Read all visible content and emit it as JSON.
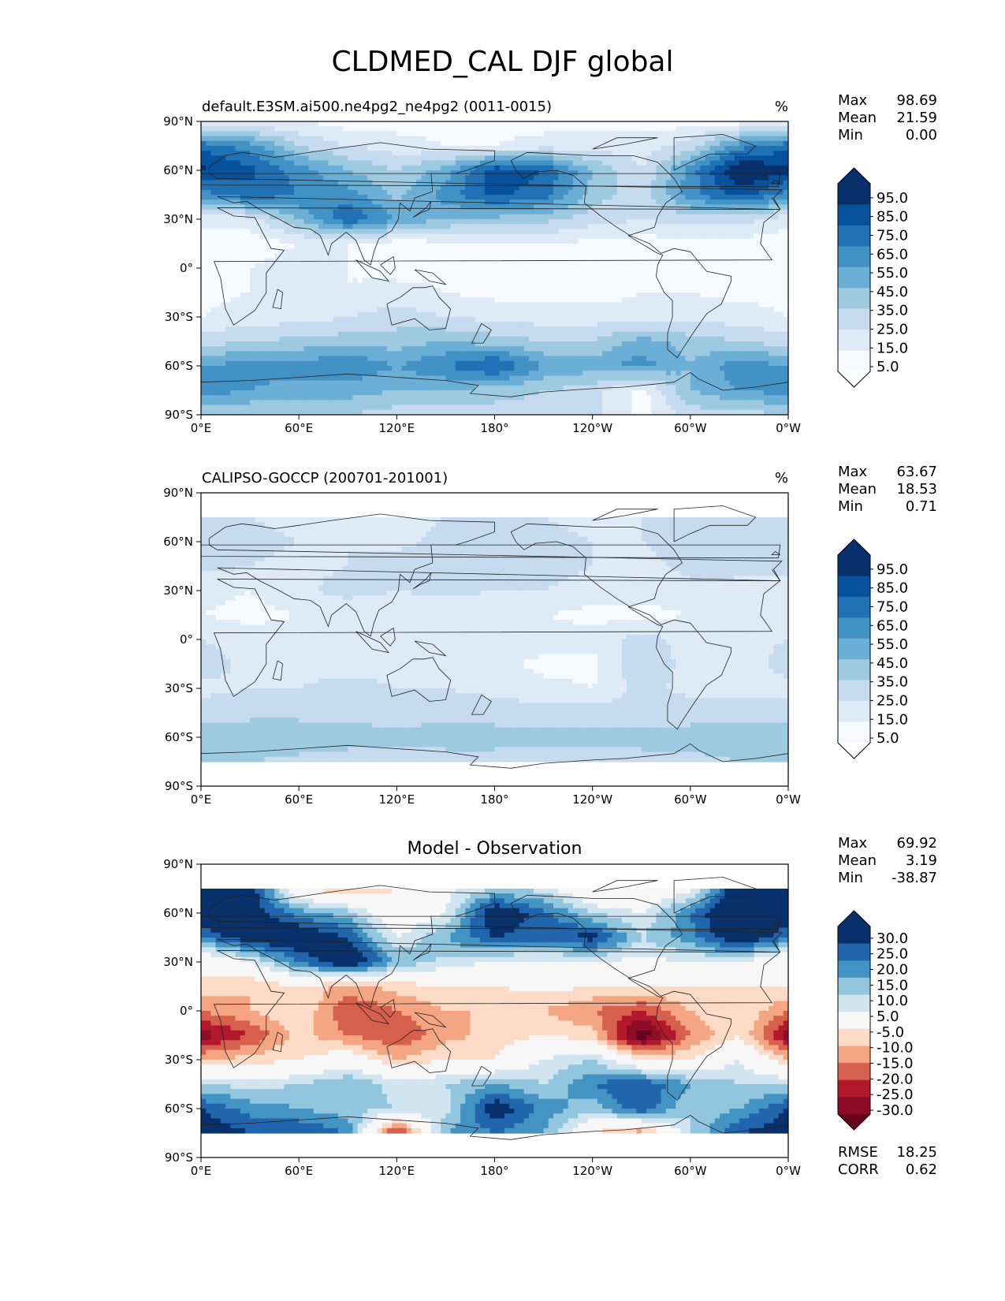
{
  "title": "CLDMED_CAL DJF global",
  "chart_data": [
    {
      "type": "heatmap",
      "title": "default.E3SM.ai500.ne4pg2_ne4pg2 (0011-0015)",
      "units": "%",
      "xticks": [
        "0°E",
        "60°E",
        "120°E",
        "180°",
        "120°W",
        "60°W",
        "0°W"
      ],
      "yticks": [
        "90°N",
        "60°N",
        "30°N",
        "0°",
        "30°S",
        "60°S",
        "90°S"
      ],
      "xlim": [
        0,
        360
      ],
      "ylim": [
        -90,
        90
      ],
      "stats": [
        {
          "label": "Max",
          "value": "98.69"
        },
        {
          "label": "Mean",
          "value": "21.59"
        },
        {
          "label": "Min",
          "value": "0.00"
        }
      ],
      "colorbar": {
        "labels": [
          "95.0",
          "85.0",
          "75.0",
          "65.0",
          "55.0",
          "45.0",
          "35.0",
          "25.0",
          "15.0",
          "5.0"
        ],
        "colors": [
          "#08306b",
          "#08519c",
          "#2171b5",
          "#4292c6",
          "#6baed6",
          "#9ecae1",
          "#c6dbef",
          "#deebf7",
          "#f7fbff"
        ],
        "extend": "both",
        "over_color": "#08306b",
        "under_color": "#ffffff"
      },
      "fields": [
        {
          "lat": 90,
          "values": [
            0.15,
            0.15,
            0.15,
            0.1,
            0.1,
            0.1,
            0.1,
            0.1,
            0.1,
            0.1,
            0.1,
            0.1
          ]
        },
        {
          "lat": 75,
          "values": [
            0.72,
            0.6,
            0.35,
            0.25,
            0.2,
            0.15,
            0.15,
            0.2,
            0.2,
            0.2,
            0.3,
            0.6
          ]
        },
        {
          "lat": 60,
          "values": [
            0.88,
            0.78,
            0.6,
            0.45,
            0.35,
            0.5,
            0.82,
            0.75,
            0.45,
            0.25,
            0.6,
            0.98
          ]
        },
        {
          "lat": 45,
          "values": [
            0.6,
            0.72,
            0.65,
            0.6,
            0.42,
            0.6,
            0.78,
            0.7,
            0.4,
            0.3,
            0.6,
            0.8
          ]
        },
        {
          "lat": 30,
          "values": [
            0.18,
            0.2,
            0.45,
            0.75,
            0.55,
            0.45,
            0.42,
            0.38,
            0.3,
            0.25,
            0.3,
            0.3
          ]
        },
        {
          "lat": 15,
          "values": [
            0.1,
            0.1,
            0.15,
            0.15,
            0.1,
            0.12,
            0.15,
            0.15,
            0.12,
            0.1,
            0.1,
            0.1
          ]
        },
        {
          "lat": 0,
          "values": [
            0.1,
            0.15,
            0.2,
            0.15,
            0.1,
            0.12,
            0.1,
            0.1,
            0.1,
            0.1,
            0.1,
            0.1
          ]
        },
        {
          "lat": -15,
          "values": [
            0.12,
            0.15,
            0.2,
            0.15,
            0.2,
            0.15,
            0.12,
            0.1,
            0.1,
            0.15,
            0.15,
            0.12
          ]
        },
        {
          "lat": -30,
          "values": [
            0.15,
            0.2,
            0.2,
            0.25,
            0.3,
            0.25,
            0.22,
            0.2,
            0.2,
            0.2,
            0.2,
            0.2
          ]
        },
        {
          "lat": -45,
          "values": [
            0.3,
            0.35,
            0.38,
            0.4,
            0.4,
            0.45,
            0.4,
            0.35,
            0.35,
            0.5,
            0.4,
            0.35
          ]
        },
        {
          "lat": -60,
          "values": [
            0.55,
            0.6,
            0.6,
            0.65,
            0.55,
            0.65,
            0.78,
            0.55,
            0.5,
            0.6,
            0.45,
            0.62
          ]
        },
        {
          "lat": -75,
          "values": [
            0.6,
            0.55,
            0.5,
            0.5,
            0.45,
            0.45,
            0.4,
            0.35,
            0.3,
            0.1,
            0.45,
            0.55
          ]
        },
        {
          "lat": -90,
          "values": [
            0.35,
            0.35,
            0.35,
            0.35,
            0.3,
            0.3,
            0.3,
            0.3,
            0.3,
            0.1,
            0.3,
            0.3
          ]
        }
      ]
    },
    {
      "type": "heatmap",
      "title": "CALIPSO-GOCCP (200701-201001)",
      "units": "%",
      "xticks": [
        "0°E",
        "60°E",
        "120°E",
        "180°",
        "120°W",
        "60°W",
        "0°W"
      ],
      "yticks": [
        "90°N",
        "60°N",
        "30°N",
        "0°",
        "30°S",
        "60°S",
        "90°S"
      ],
      "xlim": [
        0,
        360
      ],
      "ylim": [
        -90,
        90
      ],
      "stats": [
        {
          "label": "Max",
          "value": "63.67"
        },
        {
          "label": "Mean",
          "value": "18.53"
        },
        {
          "label": "Min",
          "value": "0.71"
        }
      ],
      "colorbar": {
        "labels": [
          "95.0",
          "85.0",
          "75.0",
          "65.0",
          "55.0",
          "45.0",
          "35.0",
          "25.0",
          "15.0",
          "5.0"
        ],
        "colors": [
          "#08306b",
          "#08519c",
          "#2171b5",
          "#4292c6",
          "#6baed6",
          "#9ecae1",
          "#c6dbef",
          "#deebf7",
          "#f7fbff"
        ],
        "extend": "both",
        "over_color": "#08306b",
        "under_color": "#ffffff"
      },
      "fields": [
        {
          "lat": 75,
          "values": [
            0.28,
            0.25,
            0.22,
            0.22,
            0.22,
            0.25,
            0.25,
            0.25,
            0.22,
            0.25,
            0.25,
            0.28
          ]
        },
        {
          "lat": 60,
          "values": [
            0.3,
            0.28,
            0.25,
            0.25,
            0.22,
            0.28,
            0.3,
            0.28,
            0.25,
            0.25,
            0.28,
            0.3
          ]
        },
        {
          "lat": 45,
          "values": [
            0.28,
            0.25,
            0.22,
            0.25,
            0.3,
            0.32,
            0.3,
            0.3,
            0.25,
            0.22,
            0.28,
            0.3
          ]
        },
        {
          "lat": 30,
          "values": [
            0.18,
            0.15,
            0.22,
            0.3,
            0.25,
            0.28,
            0.25,
            0.25,
            0.2,
            0.18,
            0.22,
            0.2
          ]
        },
        {
          "lat": 15,
          "values": [
            0.15,
            0.12,
            0.15,
            0.15,
            0.15,
            0.18,
            0.15,
            0.15,
            0.12,
            0.12,
            0.15,
            0.15
          ]
        },
        {
          "lat": 0,
          "values": [
            0.25,
            0.2,
            0.2,
            0.2,
            0.15,
            0.22,
            0.2,
            0.2,
            0.18,
            0.3,
            0.2,
            0.22
          ]
        },
        {
          "lat": -15,
          "values": [
            0.3,
            0.22,
            0.22,
            0.22,
            0.22,
            0.2,
            0.18,
            0.12,
            0.12,
            0.35,
            0.2,
            0.18
          ]
        },
        {
          "lat": -30,
          "values": [
            0.22,
            0.25,
            0.25,
            0.28,
            0.25,
            0.25,
            0.22,
            0.18,
            0.15,
            0.28,
            0.22,
            0.2
          ]
        },
        {
          "lat": -45,
          "values": [
            0.3,
            0.32,
            0.32,
            0.32,
            0.3,
            0.32,
            0.3,
            0.3,
            0.3,
            0.3,
            0.3,
            0.3
          ]
        },
        {
          "lat": -60,
          "values": [
            0.4,
            0.42,
            0.42,
            0.4,
            0.38,
            0.4,
            0.4,
            0.38,
            0.38,
            0.38,
            0.4,
            0.4
          ]
        },
        {
          "lat": -75,
          "values": [
            0.35,
            0.35,
            0.32,
            0.3,
            0.3,
            0.3,
            0.3,
            0.3,
            0.3,
            0.32,
            0.32,
            0.35
          ]
        }
      ]
    },
    {
      "type": "heatmap",
      "title": "Model - Observation",
      "units": "",
      "xticks": [
        "0°E",
        "60°E",
        "120°E",
        "180°",
        "120°W",
        "60°W",
        "0°W"
      ],
      "yticks": [
        "90°N",
        "60°N",
        "30°N",
        "0°",
        "30°S",
        "60°S",
        "90°S"
      ],
      "xlim": [
        0,
        360
      ],
      "ylim": [
        -90,
        90
      ],
      "stats": [
        {
          "label": "Max",
          "value": "69.92"
        },
        {
          "label": "Mean",
          "value": "3.19"
        },
        {
          "label": "Min",
          "value": "-38.87"
        }
      ],
      "metrics": [
        {
          "label": "RMSE",
          "value": "18.25"
        },
        {
          "label": "CORR",
          "value": "0.62"
        }
      ],
      "colorbar": {
        "labels": [
          "30.0",
          "25.0",
          "20.0",
          "15.0",
          "10.0",
          "5.0",
          "-5.0",
          "-10.0",
          "-15.0",
          "-20.0",
          "-25.0",
          "-30.0"
        ],
        "colors": [
          "#08306b",
          "#2166ac",
          "#4393c3",
          "#92c5de",
          "#d1e5f0",
          "#f7f7f7",
          "#fddbc7",
          "#f4a582",
          "#d6604d",
          "#b2182b",
          "#8c0d25"
        ],
        "extend": "both",
        "over_color": "#08306b",
        "under_color": "#67001f"
      },
      "fields": [
        {
          "lat": 75,
          "values": [
            32,
            30,
            -5,
            -10,
            -5,
            3,
            10,
            8,
            -5,
            -5,
            3,
            32
          ]
        },
        {
          "lat": 60,
          "values": [
            32,
            28,
            18,
            12,
            -3,
            5,
            32,
            22,
            10,
            5,
            20,
            35
          ]
        },
        {
          "lat": 45,
          "values": [
            20,
            30,
            32,
            25,
            5,
            15,
            25,
            22,
            28,
            10,
            18,
            32
          ]
        },
        {
          "lat": 30,
          "values": [
            -5,
            5,
            20,
            32,
            15,
            8,
            5,
            3,
            5,
            3,
            5,
            5
          ]
        },
        {
          "lat": 15,
          "values": [
            -5,
            -10,
            -5,
            -12,
            -8,
            -5,
            -5,
            -3,
            -5,
            -5,
            -5,
            -5
          ]
        },
        {
          "lat": 0,
          "values": [
            -15,
            -10,
            -5,
            -20,
            -15,
            -10,
            -10,
            -10,
            -15,
            -20,
            -10,
            -5
          ]
        },
        {
          "lat": -15,
          "values": [
            -28,
            -20,
            -8,
            -15,
            -20,
            -12,
            -8,
            -5,
            -8,
            -35,
            -15,
            -5
          ]
        },
        {
          "lat": -30,
          "values": [
            -10,
            -8,
            -5,
            0,
            -10,
            -5,
            -5,
            5,
            10,
            -5,
            -5,
            5
          ]
        },
        {
          "lat": -45,
          "values": [
            10,
            8,
            10,
            15,
            8,
            10,
            15,
            10,
            20,
            25,
            15,
            10
          ]
        },
        {
          "lat": -60,
          "values": [
            25,
            18,
            15,
            12,
            10,
            8,
            30,
            18,
            12,
            25,
            10,
            15
          ]
        },
        {
          "lat": -75,
          "values": [
            30,
            25,
            25,
            20,
            -25,
            15,
            20,
            15,
            -5,
            -15,
            10,
            25
          ]
        }
      ]
    }
  ]
}
